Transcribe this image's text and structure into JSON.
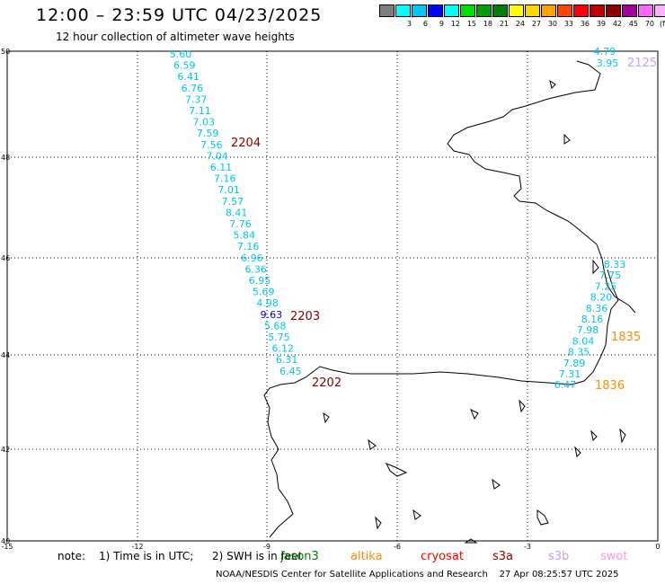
{
  "header": {
    "title": "12:00 – 23:59 UTC 04/23/2025",
    "subtitle": "12 hour collection of altimeter wave heights"
  },
  "colorbar": {
    "colors": [
      "#7f7f7f",
      "#00ffff",
      "#00c8ff",
      "#0000ff",
      "#00ffff",
      "#00e000",
      "#00a000",
      "#008000",
      "#ffff00",
      "#ffd700",
      "#ffa500",
      "#ff4500",
      "#ff0000",
      "#c00000",
      "#8b0000",
      "#a000a0",
      "#ff66ff",
      "#ffb0ff",
      "#000000"
    ],
    "labels": [
      "",
      "3",
      "6",
      "9",
      "12",
      "15",
      "18",
      "21",
      "24",
      "27",
      "30",
      "33",
      "36",
      "39",
      "42",
      "45",
      "70",
      "(ft)"
    ]
  },
  "axes": {
    "x_ticks": [
      "-15",
      "-12",
      "-9",
      "-6",
      "-3",
      "0"
    ],
    "y_ticks": [
      "50",
      "48",
      "46",
      "44",
      "42",
      "40"
    ]
  },
  "tracks": [
    {
      "time": "2204",
      "color": "#8b0000",
      "label_color": "#800000"
    },
    {
      "time": "2203",
      "color": "#8b0000",
      "label_color": "#800000"
    },
    {
      "time": "2202",
      "color": "#8b0000",
      "label_color": "#800000"
    },
    {
      "time": "2125",
      "color": "#c8a0f0",
      "label_color": "#c8a0f0"
    },
    {
      "time": "1835",
      "color": "#ff8c00",
      "label_color": "#ff8c00"
    },
    {
      "time": "1836",
      "color": "#ff8c00",
      "label_color": "#ff8c00"
    }
  ],
  "wave_heights_west": [
    "5.60",
    "6.59",
    "6.41",
    "6.76",
    "7.37",
    "7.11",
    "7.03",
    "7.59",
    "7.56",
    "7.04",
    "6.11",
    "7.16",
    "7.01",
    "7.57",
    "8.41",
    "7.76",
    "5.84",
    "7.16",
    "6.96",
    "6.36",
    "6.95",
    "5.69",
    "4.98",
    "9.63",
    "5.68",
    "5.75",
    "6.12",
    "6.31",
    "6.45"
  ],
  "wave_heights_east": [
    "8.33",
    "7.75",
    "7.25",
    "8.20",
    "8.36",
    "8.16",
    "7.98",
    "8.04",
    "8.35",
    "7.89",
    "7.31",
    "6.47"
  ],
  "wave_heights_ne": [
    "4.79",
    "3.95"
  ],
  "notes": {
    "prefix": "note:",
    "item1": "1) Time is in UTC;",
    "item2": "2) SWH is in feet"
  },
  "satellites": [
    {
      "name": "jason3",
      "color": "#008000"
    },
    {
      "name": "altika",
      "color": "#ff8c00"
    },
    {
      "name": "cryosat",
      "color": "#ff0000"
    },
    {
      "name": "s3a",
      "color": "#8b0000"
    },
    {
      "name": "s3b",
      "color": "#c8a0f0"
    },
    {
      "name": "swot",
      "color": "#ff99dd"
    }
  ],
  "footer": "NOAA/NESDIS Center for Satellite Applications and Research    27 Apr 08:25:57 UTC 2025"
}
